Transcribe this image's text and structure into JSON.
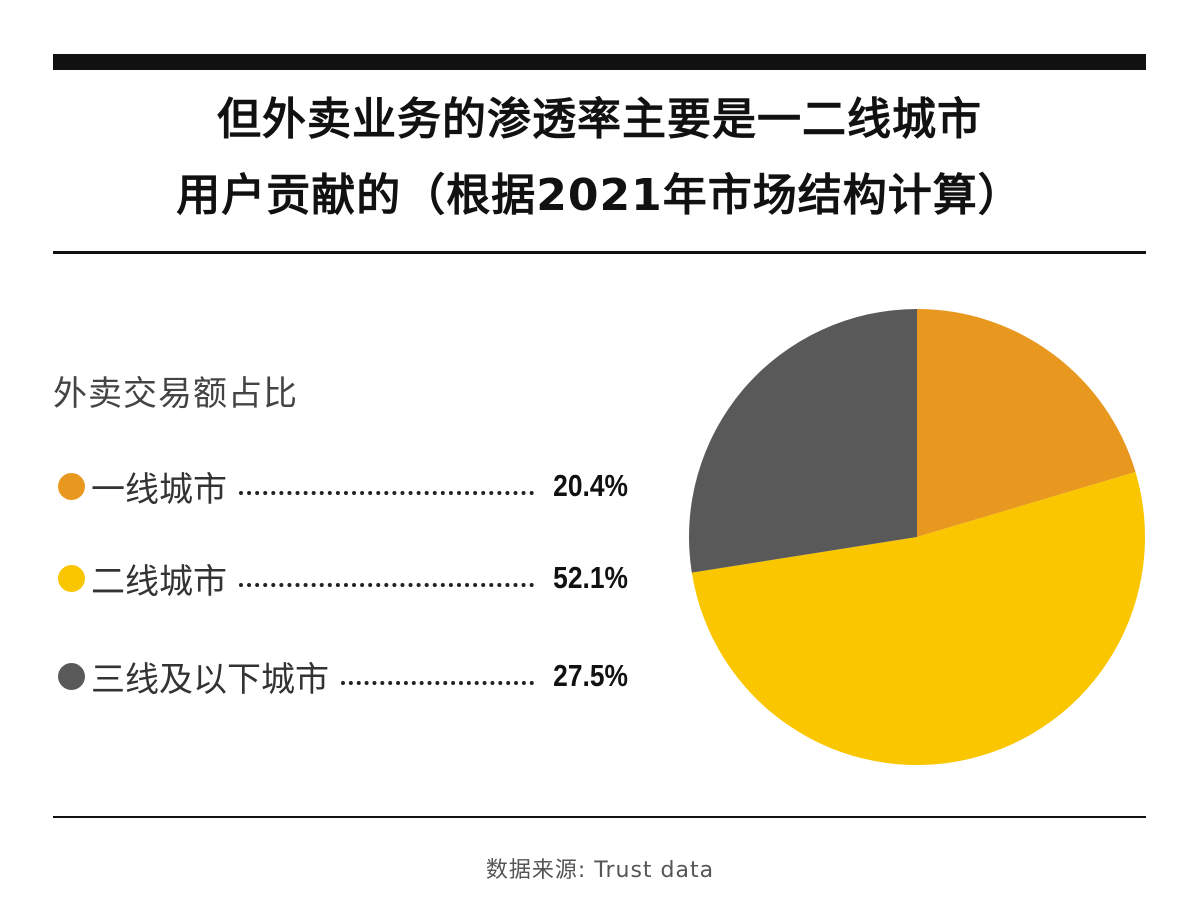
{
  "title": {
    "line1": "但外卖业务的渗透率主要是一二线城市",
    "line2": "用户贡献的（根据2021年市场结构计算）"
  },
  "chart_data": {
    "type": "pie",
    "title": "外卖交易额占比",
    "slices": [
      {
        "label": "一线城市",
        "value": 20.4,
        "display": "20.4%",
        "color": "#E8981F"
      },
      {
        "label": "二线城市",
        "value": 52.1,
        "display": "52.1%",
        "color": "#F9C600"
      },
      {
        "label": "三线及以下城市",
        "value": 27.5,
        "display": "27.5%",
        "color": "#595959"
      }
    ]
  },
  "source": "数据来源: Trust data"
}
